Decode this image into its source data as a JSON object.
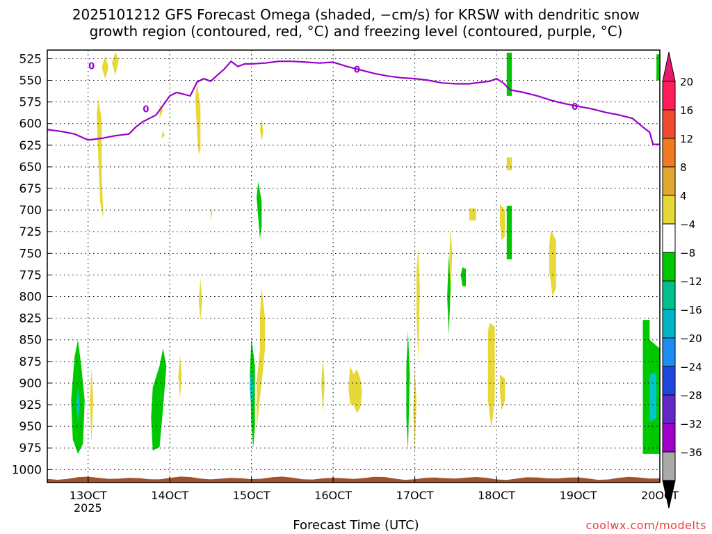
{
  "chart_data": {
    "type": "heatmap",
    "title_line1": "2025101212 GFS Forecast Omega (shaded, −cm/s) for KRSW with dendritic snow",
    "title_line2": "growth region (contoured, red, °C) and freezing level (contoured, purple, °C)",
    "xlabel": "Forecast Time (UTC)",
    "year_label": "2025",
    "credit": "coolwx.com/modelts",
    "x_unit": "hours since 2025-10-12 12Z",
    "x_range": [
      0,
      180
    ],
    "y_range": [
      515,
      1015
    ],
    "y_scale": "pressure (hPa), inverted",
    "x_ticks": [
      {
        "x": 12,
        "label": "13OCT"
      },
      {
        "x": 36,
        "label": "14OCT"
      },
      {
        "x": 60,
        "label": "15OCT"
      },
      {
        "x": 84,
        "label": "16OCT"
      },
      {
        "x": 108,
        "label": "17OCT"
      },
      {
        "x": 132,
        "label": "18OCT"
      },
      {
        "x": 156,
        "label": "19OCT"
      },
      {
        "x": 180,
        "label": "20OCT"
      }
    ],
    "y_ticks": [
      525,
      550,
      575,
      600,
      625,
      650,
      675,
      700,
      725,
      750,
      775,
      800,
      825,
      850,
      875,
      900,
      925,
      950,
      975,
      1000
    ],
    "grid": true,
    "colorbar": {
      "labels": [
        "20",
        "16",
        "12",
        "8",
        "4",
        "−4",
        "−8",
        "−12",
        "−16",
        "−20",
        "−24",
        "−28",
        "−32",
        "−36"
      ],
      "colors": [
        "#ff1e5a",
        "#f04a30",
        "#f07a20",
        "#e0a830",
        "#e6d837",
        "#ffffff",
        "#00c800",
        "#00c08c",
        "#00b4c8",
        "#1e8cf0",
        "#1e46dc",
        "#6428c8",
        "#a000c8",
        "#aaaaaa"
      ],
      "top_arrow_color": "#e6196e",
      "bottom_arrow_color": "#000000"
    },
    "freezing_level": {
      "color": "#9900cc",
      "label": "0",
      "points": [
        [
          0,
          607
        ],
        [
          4,
          609
        ],
        [
          8,
          612
        ],
        [
          12,
          619
        ],
        [
          16,
          617
        ],
        [
          20,
          614
        ],
        [
          24,
          612
        ],
        [
          26,
          604
        ],
        [
          28,
          598
        ],
        [
          30,
          594
        ],
        [
          32,
          590
        ],
        [
          34,
          579
        ],
        [
          36,
          568
        ],
        [
          38,
          564
        ],
        [
          40,
          566
        ],
        [
          42,
          568
        ],
        [
          44,
          552
        ],
        [
          46,
          548
        ],
        [
          48,
          551
        ],
        [
          50,
          544
        ],
        [
          52,
          537
        ],
        [
          54,
          528
        ],
        [
          56,
          534
        ],
        [
          58,
          531
        ],
        [
          60,
          531
        ],
        [
          64,
          530
        ],
        [
          68,
          528
        ],
        [
          72,
          528
        ],
        [
          76,
          529
        ],
        [
          80,
          530
        ],
        [
          84,
          529
        ],
        [
          88,
          534
        ],
        [
          92,
          538
        ],
        [
          96,
          542
        ],
        [
          100,
          545
        ],
        [
          104,
          547
        ],
        [
          108,
          548
        ],
        [
          112,
          550
        ],
        [
          116,
          553
        ],
        [
          120,
          554
        ],
        [
          124,
          554
        ],
        [
          128,
          552
        ],
        [
          130,
          551
        ],
        [
          132,
          548
        ],
        [
          134,
          553
        ],
        [
          136,
          561
        ],
        [
          140,
          564
        ],
        [
          144,
          568
        ],
        [
          148,
          573
        ],
        [
          152,
          577
        ],
        [
          156,
          580
        ],
        [
          160,
          583
        ],
        [
          164,
          587
        ],
        [
          168,
          590
        ],
        [
          172,
          594
        ],
        [
          175,
          604
        ],
        [
          177,
          610
        ],
        [
          178,
          624
        ],
        [
          180,
          624
        ]
      ]
    },
    "omega_regions": [
      {
        "c": "#e6d837",
        "pts": [
          [
            16,
            535
          ],
          [
            17,
            522
          ],
          [
            18,
            535
          ],
          [
            17,
            548
          ]
        ]
      },
      {
        "c": "#e6d837",
        "pts": [
          [
            20,
            517
          ],
          [
            21,
            527
          ],
          [
            20,
            544
          ],
          [
            19,
            530
          ]
        ]
      },
      {
        "c": "#e6d837",
        "pts": [
          [
            15,
            572
          ],
          [
            16,
            595
          ],
          [
            16,
            660
          ],
          [
            16.5,
            710
          ],
          [
            15.5,
            690
          ],
          [
            15,
            640
          ],
          [
            14.5,
            590
          ]
        ]
      },
      {
        "c": "#e6d837",
        "pts": [
          [
            33,
            578
          ],
          [
            34,
            585
          ],
          [
            33,
            594
          ]
        ]
      },
      {
        "c": "#e6d837",
        "pts": [
          [
            34,
            608
          ],
          [
            34.5,
            614
          ],
          [
            33.5,
            617
          ]
        ]
      },
      {
        "c": "#e6d837",
        "pts": [
          [
            44,
            553
          ],
          [
            45,
            580
          ],
          [
            45,
            630
          ],
          [
            44.5,
            636
          ],
          [
            44,
            610
          ],
          [
            43.5,
            570
          ]
        ]
      },
      {
        "c": "#e6d837",
        "pts": [
          [
            63,
            594
          ],
          [
            63.5,
            610
          ],
          [
            63,
            620
          ],
          [
            62.5,
            607
          ]
        ]
      },
      {
        "c": "#e6d837",
        "pts": [
          [
            48,
            697
          ],
          [
            48.5,
            702
          ],
          [
            48,
            712
          ]
        ]
      },
      {
        "c": "#e6d837",
        "pts": [
          [
            45,
            779
          ],
          [
            45.5,
            805
          ],
          [
            45,
            829
          ],
          [
            44.5,
            805
          ]
        ]
      },
      {
        "c": "#00c800",
        "pts": [
          [
            62,
            667
          ],
          [
            63,
            690
          ],
          [
            63,
            719
          ],
          [
            62.5,
            733
          ],
          [
            62,
            710
          ],
          [
            61.5,
            685
          ]
        ]
      },
      {
        "c": "#00c800",
        "pts": [
          [
            9,
            850
          ],
          [
            10,
            880
          ],
          [
            11,
            920
          ],
          [
            10.5,
            970
          ],
          [
            9,
            982
          ],
          [
            7.5,
            965
          ],
          [
            7,
            920
          ],
          [
            8,
            870
          ]
        ]
      },
      {
        "c": "#00c8c8",
        "pts": [
          [
            9,
            905
          ],
          [
            9.5,
            925
          ],
          [
            9,
            945
          ],
          [
            8.5,
            925
          ]
        ]
      },
      {
        "c": "#e6d837",
        "pts": [
          [
            13,
            883
          ],
          [
            13.5,
            920
          ],
          [
            13,
            970
          ],
          [
            12.5,
            920
          ]
        ]
      },
      {
        "c": "#00c800",
        "pts": [
          [
            34,
            860
          ],
          [
            35,
            880
          ],
          [
            34,
            930
          ],
          [
            33,
            974
          ],
          [
            31,
            978
          ],
          [
            30.5,
            940
          ],
          [
            31,
            905
          ],
          [
            33,
            880
          ]
        ]
      },
      {
        "c": "#e6d837",
        "pts": [
          [
            39,
            867
          ],
          [
            39.5,
            890
          ],
          [
            39,
            918
          ],
          [
            38.5,
            892
          ]
        ]
      },
      {
        "c": "#00c800",
        "pts": [
          [
            60,
            848
          ],
          [
            61,
            880
          ],
          [
            61,
            950
          ],
          [
            60.5,
            975
          ],
          [
            60,
            950
          ],
          [
            59.5,
            890
          ]
        ]
      },
      {
        "c": "#00c8c8",
        "pts": [
          [
            60,
            875
          ],
          [
            60.5,
            905
          ],
          [
            60,
            935
          ],
          [
            59.5,
            905
          ]
        ]
      },
      {
        "c": "#e6d837",
        "pts": [
          [
            63,
            790
          ],
          [
            64,
            825
          ],
          [
            64,
            860
          ],
          [
            63,
            900
          ],
          [
            62,
            935
          ],
          [
            61.5,
            955
          ],
          [
            61.5,
            900
          ],
          [
            62.5,
            860
          ],
          [
            62.5,
            820
          ]
        ]
      },
      {
        "c": "#e6d837",
        "pts": [
          [
            81,
            872
          ],
          [
            81.5,
            900
          ],
          [
            81,
            934
          ],
          [
            80.5,
            900
          ]
        ]
      },
      {
        "c": "#e6d837",
        "pts": [
          [
            89,
            880
          ],
          [
            90,
            890
          ],
          [
            91,
            884
          ],
          [
            92,
            895
          ],
          [
            92.5,
            910
          ],
          [
            92,
            928
          ],
          [
            91,
            935
          ],
          [
            90,
            925
          ],
          [
            89,
            925
          ],
          [
            88.5,
            905
          ]
        ]
      },
      {
        "c": "#00c800",
        "pts": [
          [
            106,
            840
          ],
          [
            106.5,
            890
          ],
          [
            106,
            978
          ],
          [
            105.5,
            940
          ],
          [
            105.5,
            880
          ]
        ]
      },
      {
        "c": "#e6d837",
        "pts": [
          [
            109,
            745
          ],
          [
            109.5,
            790
          ],
          [
            109,
            875
          ],
          [
            108.5,
            820
          ],
          [
            108.5,
            770
          ]
        ]
      },
      {
        "c": "#e6d837",
        "pts": [
          [
            108,
            885
          ],
          [
            108.5,
            920
          ],
          [
            108,
            980
          ],
          [
            107.5,
            930
          ]
        ]
      },
      {
        "c": "#e6d837",
        "pts": [
          [
            118.5,
            720
          ],
          [
            119,
            750
          ],
          [
            118.5,
            800
          ],
          [
            118,
            770
          ]
        ]
      },
      {
        "c": "#00c800",
        "pts": [
          [
            118,
            752
          ],
          [
            118.5,
            790
          ],
          [
            118,
            845
          ],
          [
            117.5,
            800
          ]
        ]
      },
      {
        "c": "#00c800",
        "pts": [
          [
            122,
            766
          ],
          [
            123,
            768
          ],
          [
            123,
            788
          ],
          [
            122,
            788
          ],
          [
            121.5,
            775
          ]
        ]
      },
      {
        "c": "#e6d837",
        "pts": [
          [
            124,
            698
          ],
          [
            126,
            698
          ],
          [
            126,
            712
          ],
          [
            124,
            712
          ]
        ]
      },
      {
        "c": "#e6d837",
        "pts": [
          [
            130,
            830
          ],
          [
            131.5,
            835
          ],
          [
            131.5,
            920
          ],
          [
            130.5,
            952
          ],
          [
            129.5,
            920
          ],
          [
            129.5,
            840
          ]
        ]
      },
      {
        "c": "#e6d837",
        "pts": [
          [
            133,
            693
          ],
          [
            134.5,
            700
          ],
          [
            134.5,
            730
          ],
          [
            133.5,
            735
          ],
          [
            133,
            715
          ]
        ]
      },
      {
        "c": "#e6d837",
        "pts": [
          [
            133,
            890
          ],
          [
            134.5,
            895
          ],
          [
            134.5,
            920
          ],
          [
            133.5,
            932
          ],
          [
            133,
            910
          ]
        ]
      },
      {
        "c": "#00c800",
        "pts": [
          [
            135,
            695
          ],
          [
            136.5,
            695
          ],
          [
            136.5,
            757
          ],
          [
            135,
            757
          ]
        ]
      },
      {
        "c": "#00c800",
        "pts": [
          [
            135,
            518
          ],
          [
            136.5,
            518
          ],
          [
            136.5,
            568
          ],
          [
            135,
            568
          ]
        ]
      },
      {
        "c": "#e6d837",
        "pts": [
          [
            135,
            639
          ],
          [
            136.5,
            639
          ],
          [
            136.5,
            654
          ],
          [
            135,
            654
          ]
        ]
      },
      {
        "c": "#e6d837",
        "pts": [
          [
            148,
            723
          ],
          [
            149.5,
            735
          ],
          [
            149.5,
            790
          ],
          [
            148.5,
            800
          ],
          [
            147.5,
            770
          ],
          [
            147.5,
            740
          ]
        ]
      },
      {
        "c": "#00c800",
        "pts": [
          [
            175,
            827
          ],
          [
            177,
            827
          ],
          [
            177,
            850
          ],
          [
            180,
            860
          ],
          [
            180,
            982
          ],
          [
            175,
            982
          ]
        ]
      },
      {
        "c": "#00c8c8",
        "pts": [
          [
            177,
            890
          ],
          [
            179,
            888
          ],
          [
            179,
            940
          ],
          [
            177,
            945
          ]
        ]
      },
      {
        "c": "#00c800",
        "pts": [
          [
            179,
            520
          ],
          [
            180,
            520
          ],
          [
            180,
            550
          ],
          [
            179,
            550
          ]
        ]
      }
    ],
    "terrain_color": "#a0522d"
  }
}
